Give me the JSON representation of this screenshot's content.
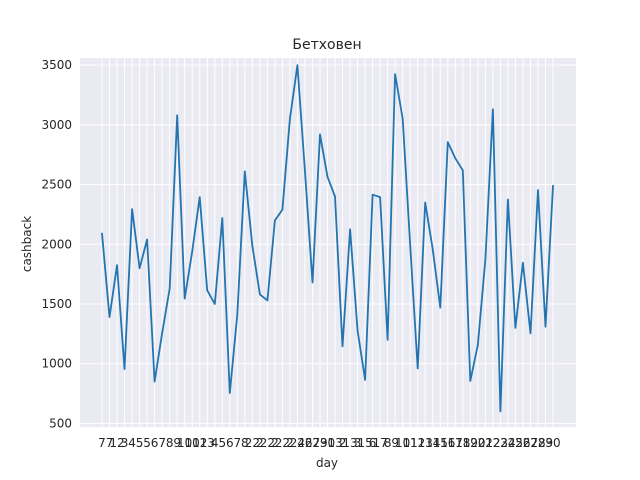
{
  "chart_data": {
    "type": "line",
    "title": "Бетховен",
    "xlabel": "day",
    "ylabel": "cashback",
    "grid": true,
    "legend": "none",
    "background_color": "#eaeaf2",
    "line_color": "#2474b0",
    "ylim": [
      470,
      3560
    ],
    "yticks": [
      500,
      1000,
      1500,
      2000,
      2500,
      3000,
      3500
    ],
    "x_tick_labels": [
      "7",
      "7",
      "12",
      "3",
      "4",
      "5",
      "5",
      "6",
      "7",
      "8",
      "9",
      "10",
      "10",
      "12",
      "13",
      "4",
      "5",
      "6",
      "7",
      "8",
      "22",
      "2",
      "22",
      "2",
      "22",
      "2",
      "24",
      "26",
      "27",
      "29",
      "30",
      "13",
      "2",
      "13",
      "3",
      "15",
      "6",
      "17",
      "8",
      "9",
      "10",
      "11",
      "12",
      "13",
      "14",
      "15",
      "16",
      "17",
      "18",
      "19",
      "20",
      "21",
      "22",
      "23",
      "24",
      "25",
      "26",
      "27",
      "28",
      "29",
      "30"
    ],
    "values": [
      2090,
      1390,
      1825,
      955,
      2295,
      1800,
      2040,
      850,
      1255,
      1630,
      3080,
      1545,
      1940,
      2395,
      1615,
      1500,
      2220,
      755,
      1410,
      2610,
      1990,
      1580,
      1530,
      2200,
      2290,
      3050,
      3500,
      2620,
      1680,
      2920,
      2565,
      2400,
      1145,
      2125,
      1275,
      865,
      2415,
      2395,
      1200,
      3425,
      3050,
      1990,
      960,
      2350,
      1960,
      1470,
      2855,
      2720,
      2620,
      855,
      1155,
      1875,
      3130,
      600,
      2375,
      1300,
      1845,
      1255,
      2455,
      1310,
      2490
    ]
  }
}
